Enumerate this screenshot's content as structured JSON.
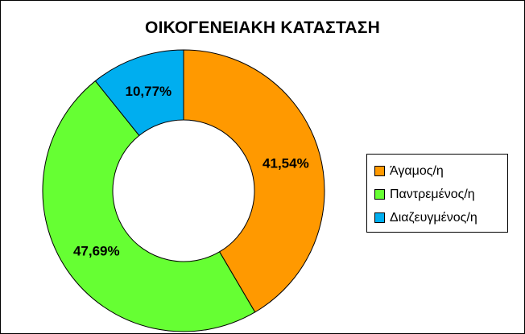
{
  "chart_data": {
    "type": "pie",
    "variant": "doughnut",
    "title": "ΟΙΚΟΓΕΝΕΙΑΚΗ ΚΑΤΑΣΤΑΣΗ",
    "categories": [
      "Άγαμος/η",
      "Παντρεμένος/η",
      "Διαζευγμένος/η"
    ],
    "values": [
      41.54,
      47.69,
      10.77
    ],
    "data_labels": [
      "41,54%",
      "47,69%",
      "10,77%"
    ],
    "colors": [
      "#FF9900",
      "#66FF33",
      "#00AEEF"
    ],
    "legend_position": "right",
    "start_angle": "12 o'clock",
    "direction": "clockwise"
  }
}
